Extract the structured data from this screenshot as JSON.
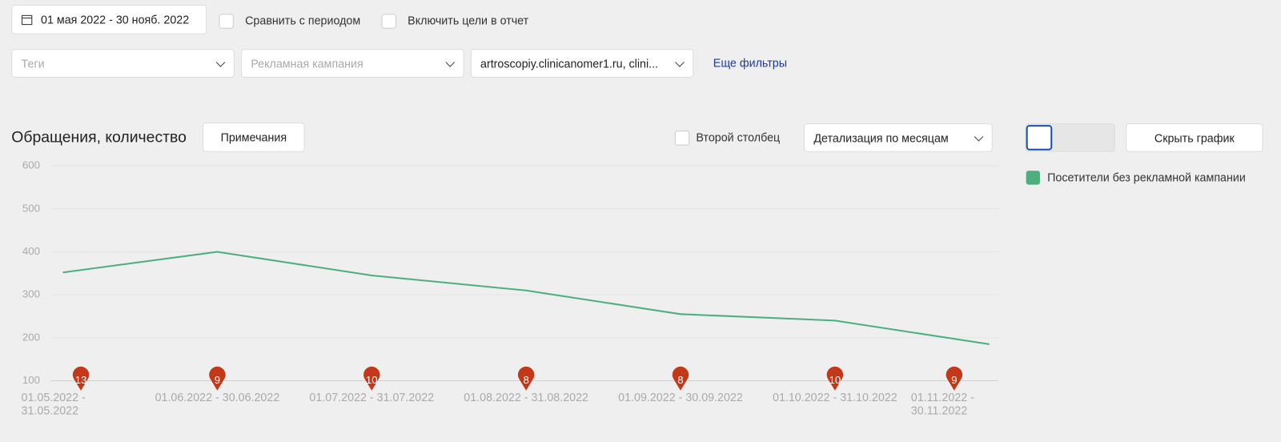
{
  "toolbar": {
    "date_range": "01 мая 2022 - 30 нояб. 2022",
    "compare": "Сравнить с периодом",
    "goals": "Включить цели в отчет"
  },
  "filters": {
    "tags": "Теги",
    "campaign": "Рекламная кампания",
    "site": "artroscopiy.clinicanomer1.ru, clini...",
    "more": "Еще фильтры"
  },
  "controls": {
    "notes": "Примечания",
    "second_column": "Второй столбец",
    "detail": "Детализация по месяцам",
    "hide": "Скрыть график"
  },
  "chart_data": {
    "type": "line",
    "title": "Обращения, количество",
    "categories": [
      "01.05.2022 - 31.05.2022",
      "01.06.2022 - 30.06.2022",
      "01.07.2022 - 31.07.2022",
      "01.08.2022 - 31.08.2022",
      "01.09.2022 - 30.09.2022",
      "01.10.2022 - 31.10.2022",
      "01.11.2022 - 30.11.2022"
    ],
    "series": [
      {
        "name": "Посетители без рекламной кампании",
        "color": "#4caf7d",
        "values": [
          352,
          400,
          345,
          310,
          255,
          240,
          185
        ]
      }
    ],
    "notes": [
      13,
      9,
      10,
      8,
      8,
      10,
      9
    ],
    "ylim": [
      100,
      600
    ],
    "yticks": [
      100,
      200,
      300,
      400,
      500,
      600
    ],
    "grid": true
  }
}
